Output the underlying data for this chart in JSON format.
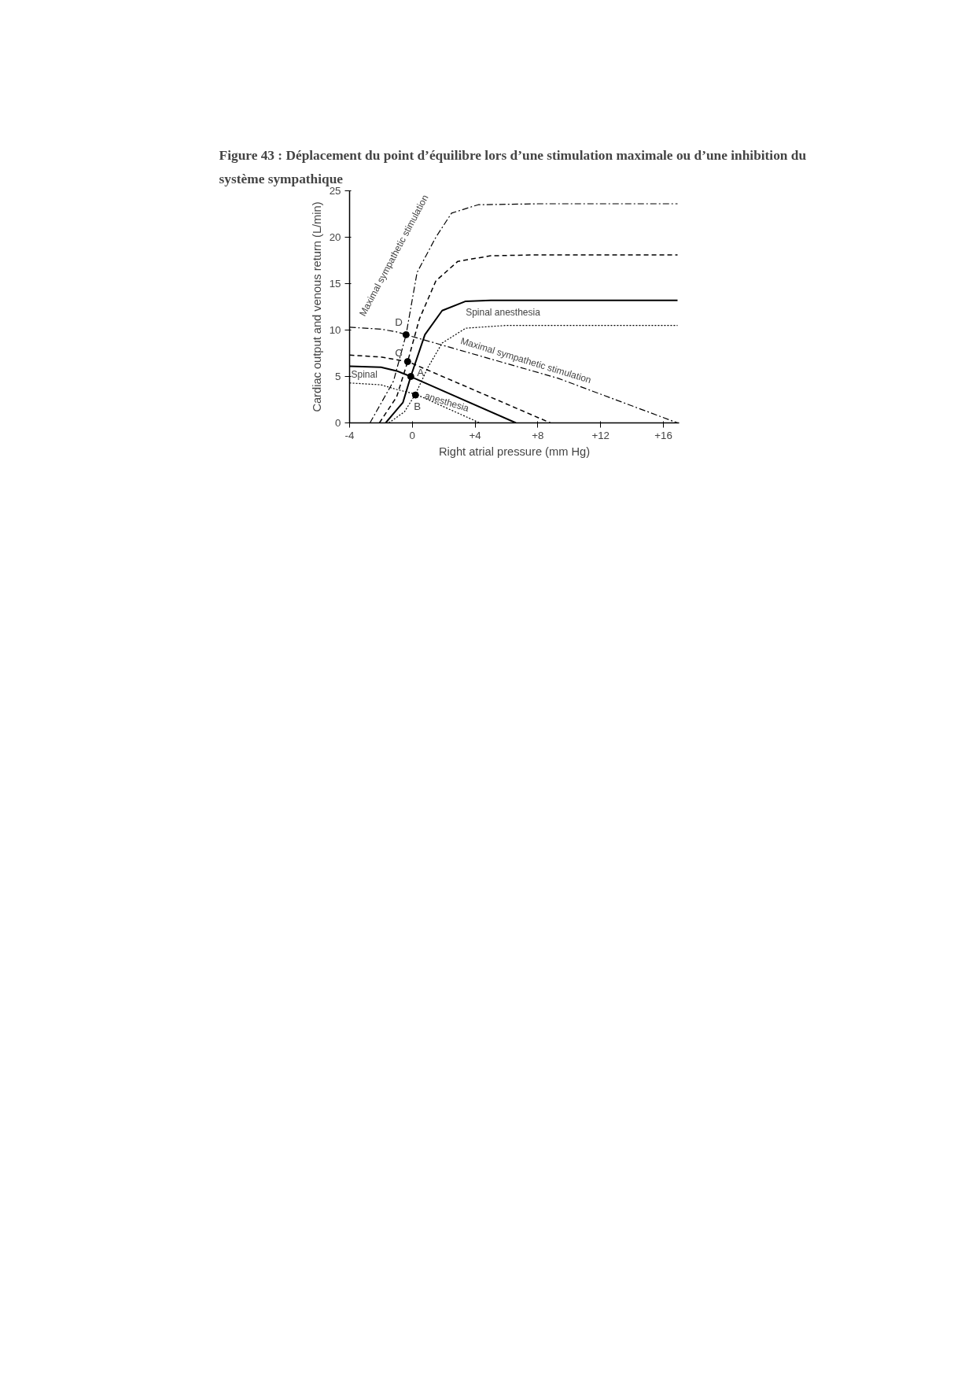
{
  "chart_data": {
    "type": "line",
    "title": "Figure 43 : Déplacement du point d’équilibre lors d’une stimulation maximale ou  d’une inhibition du système sympathique",
    "xlabel": "Right atrial pressure (mm Hg)",
    "ylabel": "Cardiac output and venous return (L/min)",
    "xlim": [
      -4,
      17
    ],
    "ylim": [
      0,
      25
    ],
    "xticks": [
      {
        "value": -4,
        "label": "-4"
      },
      0,
      {
        "value": 4,
        "label": "+4"
      },
      {
        "value": 8,
        "label": "+8"
      },
      {
        "value": 12,
        "label": "+12"
      },
      {
        "value": 16,
        "label": "+16"
      }
    ],
    "yticks": [
      0,
      5,
      10,
      15,
      20,
      25
    ],
    "grid": false,
    "series": [
      {
        "color": "#000000",
        "line_style": "dashdot",
        "x": [
          -2.7,
          -1.2,
          -0.4,
          0.3,
          1.5,
          2.5,
          4.2,
          8,
          12,
          16.9
        ],
        "values": [
          0,
          4.5,
          9.5,
          16.2,
          20,
          22.6,
          23.5,
          23.6,
          23.6,
          23.6
        ]
      },
      {
        "color": "#000000",
        "line_style": "dashed",
        "x": [
          -2.1,
          -1,
          -0.3,
          0.45,
          1.5,
          2.9,
          5,
          8,
          12,
          16.9
        ],
        "values": [
          0,
          2.8,
          6.6,
          11.2,
          15.3,
          17.4,
          18,
          18.1,
          18.1,
          18.1
        ]
      },
      {
        "color": "#000000",
        "line_style": "solid",
        "x": [
          -1.7,
          -0.6,
          -0.1,
          0.8,
          1.9,
          3.4,
          5,
          8,
          12,
          16.9
        ],
        "values": [
          0,
          2.2,
          5,
          9.5,
          12.1,
          13.1,
          13.2,
          13.2,
          13.2,
          13.2
        ]
      },
      {
        "color": "#000000",
        "line_style": "dotted",
        "x": [
          -1.5,
          -0.5,
          0.2,
          1,
          1.9,
          3.4,
          6,
          12,
          16.9
        ],
        "values": [
          0,
          1.2,
          3.1,
          6,
          8.6,
          10.2,
          10.5,
          10.5,
          10.5
        ]
      },
      {
        "color": "#000000",
        "line_style": "dashdot",
        "x": [
          -4,
          -2,
          -1,
          -0.4,
          0,
          9.3,
          16.9
        ],
        "values": [
          10.3,
          10.1,
          9.8,
          9.5,
          9.3,
          4.8,
          0
        ]
      },
      {
        "color": "#000000",
        "line_style": "dashed",
        "x": [
          -4,
          -2,
          -1,
          -0.3,
          0,
          8.8
        ],
        "values": [
          7.3,
          7.1,
          6.8,
          6.6,
          6.4,
          0
        ]
      },
      {
        "color": "#000000",
        "line_style": "solid",
        "x": [
          -4,
          -2,
          -1,
          -0.1,
          0,
          6.6
        ],
        "values": [
          6.1,
          6,
          5.6,
          5,
          4.9,
          0
        ]
      },
      {
        "color": "#000000",
        "line_style": "dotted",
        "x": [
          -4,
          -2,
          -1,
          0.2,
          4.3
        ],
        "values": [
          4.3,
          4.1,
          3.6,
          3.1,
          0
        ]
      },
      {
        "type": "scatter",
        "marker": "circle",
        "color": "#000000",
        "x": [
          -0.1,
          0.2,
          -0.3,
          -0.4
        ],
        "values": [
          5,
          3,
          6.6,
          9.5
        ]
      }
    ],
    "annotations": [
      {
        "text": "A",
        "x": -0.1,
        "y": 5
      },
      {
        "text": "B",
        "x": 0.2,
        "y": 3
      },
      {
        "text": "C",
        "x": -0.3,
        "y": 6.6
      },
      {
        "text": "D",
        "x": -0.4,
        "y": 9.5
      },
      "Maximal sympathetic stimulation",
      "Spinal anesthesia",
      "Maximal sympathetic stimulation",
      "Spinal",
      "anesthesia"
    ]
  }
}
